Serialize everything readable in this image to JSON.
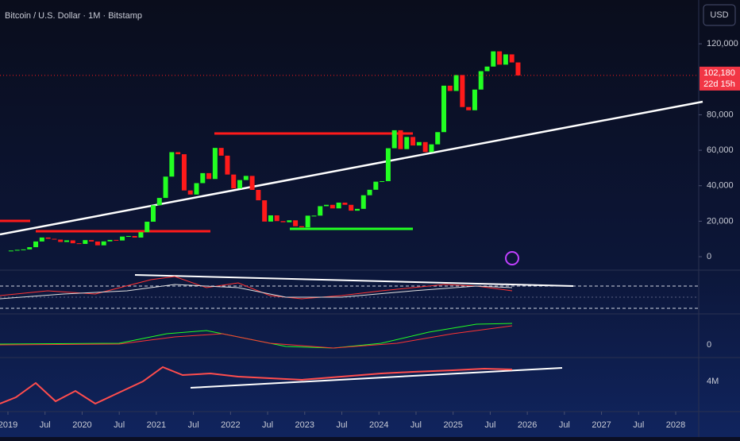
{
  "chart_data": {
    "type": "candlestick",
    "title": "Bitcoin / U.S. Dollar · 1M · Bitstamp",
    "currency": "USD",
    "last_price": {
      "value": 102180,
      "label": "102,180"
    },
    "countdown": "22d 15h",
    "pane_labels": [
      "0",
      "4M"
    ],
    "up_color": "#22ff22",
    "down_color": "#ff1a1a",
    "x": [
      "2019-01",
      "2019-02",
      "2019-03",
      "2019-04",
      "2019-05",
      "2019-06",
      "2019-07",
      "2019-08",
      "2019-09",
      "2019-10",
      "2019-11",
      "2019-12",
      "2020-01",
      "2020-02",
      "2020-03",
      "2020-04",
      "2020-05",
      "2020-06",
      "2020-07",
      "2020-08",
      "2020-09",
      "2020-10",
      "2020-11",
      "2020-12",
      "2021-01",
      "2021-02",
      "2021-03",
      "2021-04",
      "2021-05",
      "2021-06",
      "2021-07",
      "2021-08",
      "2021-09",
      "2021-10",
      "2021-11",
      "2021-12",
      "2022-01",
      "2022-02",
      "2022-03",
      "2022-04",
      "2022-05",
      "2022-06",
      "2022-07",
      "2022-08",
      "2022-09",
      "2022-10",
      "2022-11",
      "2022-12",
      "2023-01",
      "2023-02",
      "2023-03",
      "2023-04",
      "2023-05",
      "2023-06",
      "2023-07",
      "2023-08",
      "2023-09",
      "2023-10",
      "2023-11",
      "2023-12",
      "2024-01",
      "2024-02",
      "2024-03",
      "2024-04",
      "2024-05",
      "2024-06",
      "2024-07",
      "2024-08",
      "2024-09",
      "2024-10",
      "2024-11",
      "2024-12",
      "2025-01",
      "2025-02",
      "2025-03",
      "2025-04",
      "2025-05",
      "2025-06",
      "2025-07",
      "2025-08",
      "2025-09",
      "2025-10",
      "2025-11"
    ],
    "series": [
      {
        "name": "Close",
        "values": [
          3457,
          3854,
          4105,
          5350,
          8574,
          10817,
          10085,
          9630,
          8293,
          9199,
          7569,
          7193,
          9350,
          8543,
          6410,
          8624,
          9454,
          9135,
          11351,
          11655,
          10777,
          13805,
          19713,
          28990,
          33114,
          45137,
          58918,
          57750,
          37332,
          35040,
          41461,
          47100,
          43790,
          61318,
          56950,
          46306,
          38483,
          43193,
          45538,
          37644,
          31792,
          19785,
          23296,
          20050,
          19423,
          20495,
          17168,
          16548,
          23125,
          23142,
          28478,
          29233,
          27216,
          30472,
          29232,
          25941,
          26962,
          34639,
          37723,
          42284,
          42580,
          61130,
          71280,
          60636,
          67491,
          62678,
          64619,
          58969,
          63329,
          70215,
          96405,
          93429,
          102405,
          84350,
          82548,
          94207,
          104591,
          107173,
          115758,
          108253,
          114049,
          109500,
          102180
        ]
      }
    ],
    "xlim": [
      2018.893,
      2028.31
    ],
    "xticks": [
      2019,
      {
        "value": 2019.5,
        "label": "Jul"
      },
      2020,
      {
        "value": 2020.5,
        "label": "Jul"
      },
      2021,
      {
        "value": 2021.5,
        "label": "Jul"
      },
      2022,
      {
        "value": 2022.5,
        "label": "Jul"
      },
      2023,
      {
        "value": 2023.5,
        "label": "Jul"
      },
      2024,
      {
        "value": 2024.5,
        "label": "Jul"
      },
      2025,
      {
        "value": 2025.5,
        "label": "Jul"
      },
      2026,
      {
        "value": 2026.5,
        "label": "Jul"
      },
      2027,
      {
        "value": 2027.5,
        "label": "Jul"
      },
      2028
    ],
    "ylim": [
      -7600,
      144700
    ],
    "yticks": [
      0,
      {
        "value": 20000,
        "label": "20,000"
      },
      {
        "value": 40000,
        "label": "40,000"
      },
      {
        "value": 60000,
        "label": "60,000"
      },
      {
        "value": 80000,
        "label": "80,000"
      },
      {
        "value": 120000,
        "label": "120,000"
      }
    ]
  }
}
